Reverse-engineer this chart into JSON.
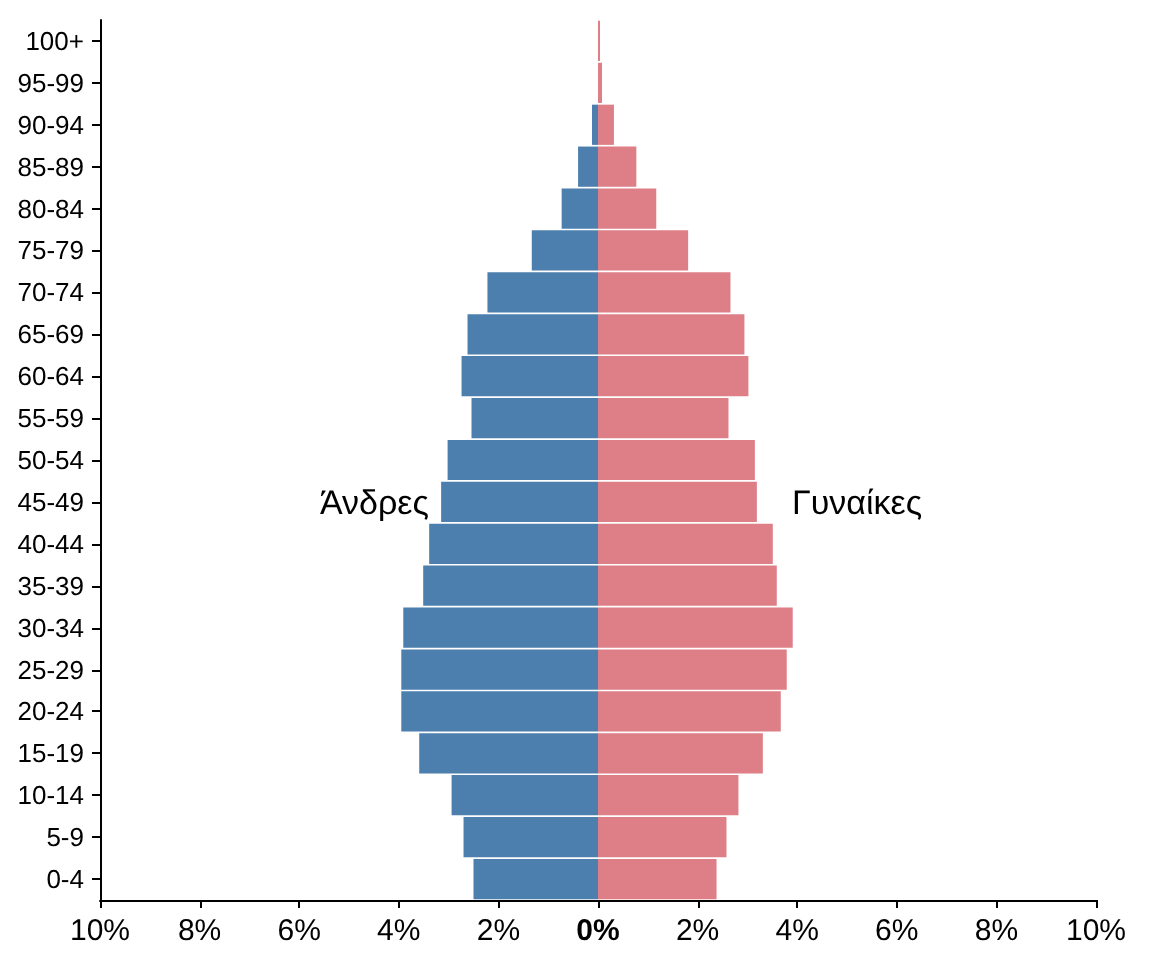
{
  "chart_data": {
    "type": "bar",
    "orientation": "horizontal",
    "categories": [
      "100+",
      "95-99",
      "90-94",
      "85-89",
      "80-84",
      "75-79",
      "70-74",
      "65-69",
      "60-64",
      "55-59",
      "50-54",
      "45-49",
      "40-44",
      "35-39",
      "30-34",
      "25-29",
      "20-24",
      "15-19",
      "10-14",
      "5-9",
      "0-4"
    ],
    "series": [
      {
        "name": "Άνδρες",
        "color": "#4d7fae",
        "values": [
          0,
          0,
          -0.12,
          -0.4,
          -0.73,
          -1.33,
          -2.22,
          -2.62,
          -2.74,
          -2.54,
          -3.02,
          -3.15,
          -3.39,
          -3.51,
          -3.91,
          -3.95,
          -3.95,
          -3.59,
          -2.94,
          -2.7,
          -2.5
        ]
      },
      {
        "name": "Γυναίκες",
        "color": "#de7f87",
        "values": [
          0.04,
          0.08,
          0.32,
          0.77,
          1.17,
          1.81,
          2.66,
          2.94,
          3.02,
          2.62,
          3.15,
          3.19,
          3.51,
          3.59,
          3.91,
          3.79,
          3.67,
          3.31,
          2.82,
          2.58,
          2.38
        ]
      }
    ],
    "xlim": [
      -10,
      10
    ],
    "xticks": [
      {
        "value": -10,
        "label": "10%"
      },
      {
        "value": -8,
        "label": "8%"
      },
      {
        "value": -6,
        "label": "6%"
      },
      {
        "value": -4,
        "label": "4%"
      },
      {
        "value": -2,
        "label": "2%"
      },
      {
        "value": 0,
        "label": "0%"
      },
      {
        "value": 2,
        "label": "2%"
      },
      {
        "value": 4,
        "label": "4%"
      },
      {
        "value": 6,
        "label": "6%"
      },
      {
        "value": 8,
        "label": "8%"
      },
      {
        "value": 10,
        "label": "10%"
      }
    ],
    "stacked": true,
    "grid": false,
    "legend": false
  }
}
